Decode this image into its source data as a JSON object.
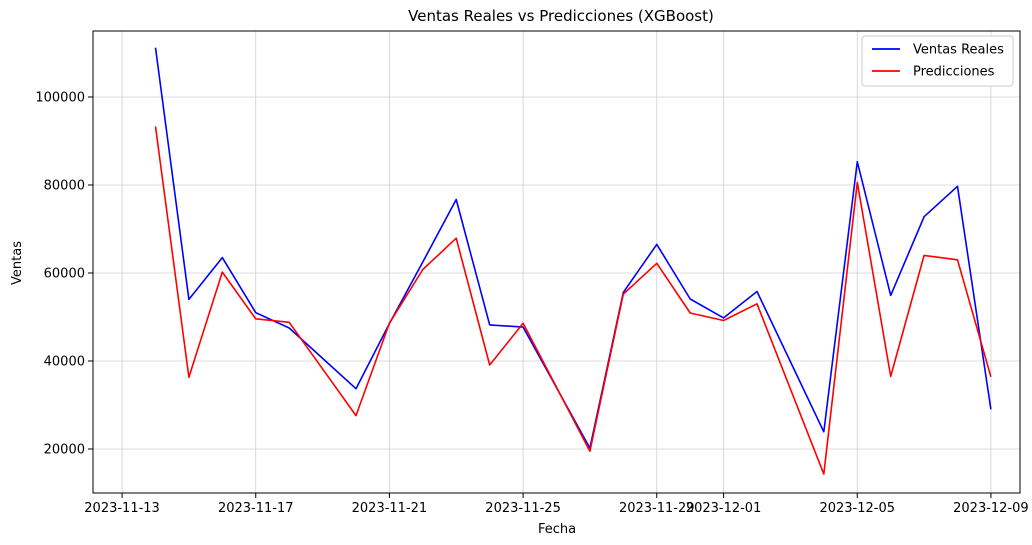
{
  "chart_data": {
    "type": "line",
    "title": "Ventas Reales vs Predicciones (XGBoost)",
    "xlabel": "Fecha",
    "ylabel": "Ventas",
    "grid": true,
    "legend_position": "top-right",
    "xlim": [
      "2023-11-13",
      "2023-12-09"
    ],
    "ylim": [
      10000,
      115000
    ],
    "x_ticks": [
      "2023-11-13",
      "2023-11-17",
      "2023-11-21",
      "2023-11-25",
      "2023-11-29",
      "2023-12-01",
      "2023-12-05",
      "2023-12-09"
    ],
    "y_ticks": [
      20000,
      40000,
      60000,
      80000,
      100000
    ],
    "x": [
      "2023-11-14",
      "2023-11-15",
      "2023-11-16",
      "2023-11-17",
      "2023-11-18",
      "2023-11-20",
      "2023-11-21",
      "2023-11-22",
      "2023-11-23",
      "2023-11-24",
      "2023-11-25",
      "2023-11-27",
      "2023-11-28",
      "2023-11-29",
      "2023-11-30",
      "2023-12-01",
      "2023-12-02",
      "2023-12-04",
      "2023-12-05",
      "2023-12-06",
      "2023-12-07",
      "2023-12-08",
      "2023-12-09"
    ],
    "series": [
      {
        "name": "Ventas Reales",
        "color": "#0000ff",
        "values": [
          111200,
          54000,
          63500,
          51000,
          47500,
          33700,
          48500,
          62500,
          76700,
          48200,
          47700,
          20200,
          55600,
          66500,
          54100,
          49800,
          55800,
          23900,
          85300,
          54900,
          72800,
          79700,
          29000
        ]
      },
      {
        "name": "Predicciones",
        "color": "#ff0000",
        "values": [
          93300,
          36300,
          60200,
          49600,
          48800,
          27600,
          48600,
          60800,
          67900,
          39100,
          48600,
          19500,
          55200,
          62200,
          50900,
          49200,
          53000,
          14300,
          80600,
          36500,
          64000,
          63000,
          36400
        ]
      }
    ]
  }
}
